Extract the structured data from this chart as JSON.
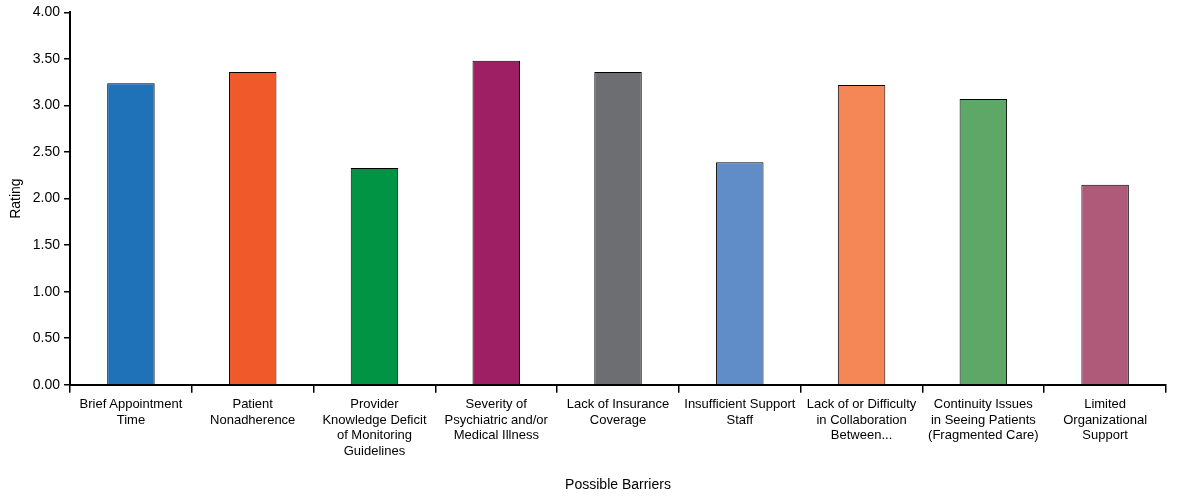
{
  "chart_data": {
    "type": "bar",
    "xlabel": "Possible Barriers",
    "ylabel": "Rating",
    "categories": [
      "Brief Appointment Time",
      "Patient Nonadherence",
      "Provider Knowledge Deficit of Monitoring Guidelines",
      "Severity of Psychiatric and/or Medical Illness",
      "Lack of Insurance Coverage",
      "Insufficient Support Staff",
      "Lack of or Difficulty in Collaboration Between...",
      "Continuity Issues in Seeing Patients (Fragmented Care)",
      "Limited Organizational Support"
    ],
    "values": [
      3.24,
      3.36,
      2.33,
      3.48,
      3.36,
      2.39,
      3.22,
      3.07,
      2.15
    ],
    "colors": [
      "#1f71b8",
      "#f05a2a",
      "#009444",
      "#9e1f63",
      "#6d6e71",
      "#608dc8",
      "#f58656",
      "#5ea867",
      "#b05a7a"
    ],
    "ylim": [
      0,
      4
    ],
    "yticks": [
      {
        "value": 0,
        "label": "0.00"
      },
      {
        "value": 0.5,
        "label": "0.50"
      },
      {
        "value": 1,
        "label": "1.00"
      },
      {
        "value": 1.5,
        "label": "1.50"
      },
      {
        "value": 2,
        "label": "2.00"
      },
      {
        "value": 2.5,
        "label": "2.50"
      },
      {
        "value": 3,
        "label": "3.00"
      },
      {
        "value": 3.5,
        "label": "3.50"
      },
      {
        "value": 4,
        "label": "4.00"
      }
    ],
    "grid": false,
    "legend": false
  }
}
